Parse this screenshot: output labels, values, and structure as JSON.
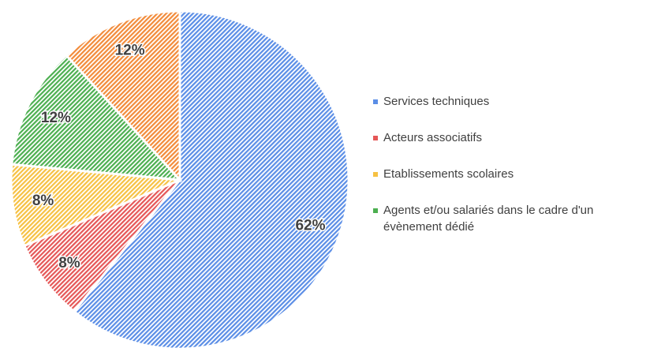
{
  "chart_data": {
    "type": "pie",
    "categories": [
      "Services techniques",
      "Acteurs associatifs",
      "Etablissements scolaires",
      "Agents et/ou salariés dans le cadre d'un évènement dédié",
      null
    ],
    "values": [
      62,
      8,
      8,
      12,
      12
    ],
    "value_labels": [
      "62%",
      "8%",
      "8%",
      "12%",
      "12%"
    ],
    "colors": [
      "#5b8ee6",
      "#e55757",
      "#f6c143",
      "#4caf50",
      "#f28b3a"
    ],
    "legend": "right"
  }
}
